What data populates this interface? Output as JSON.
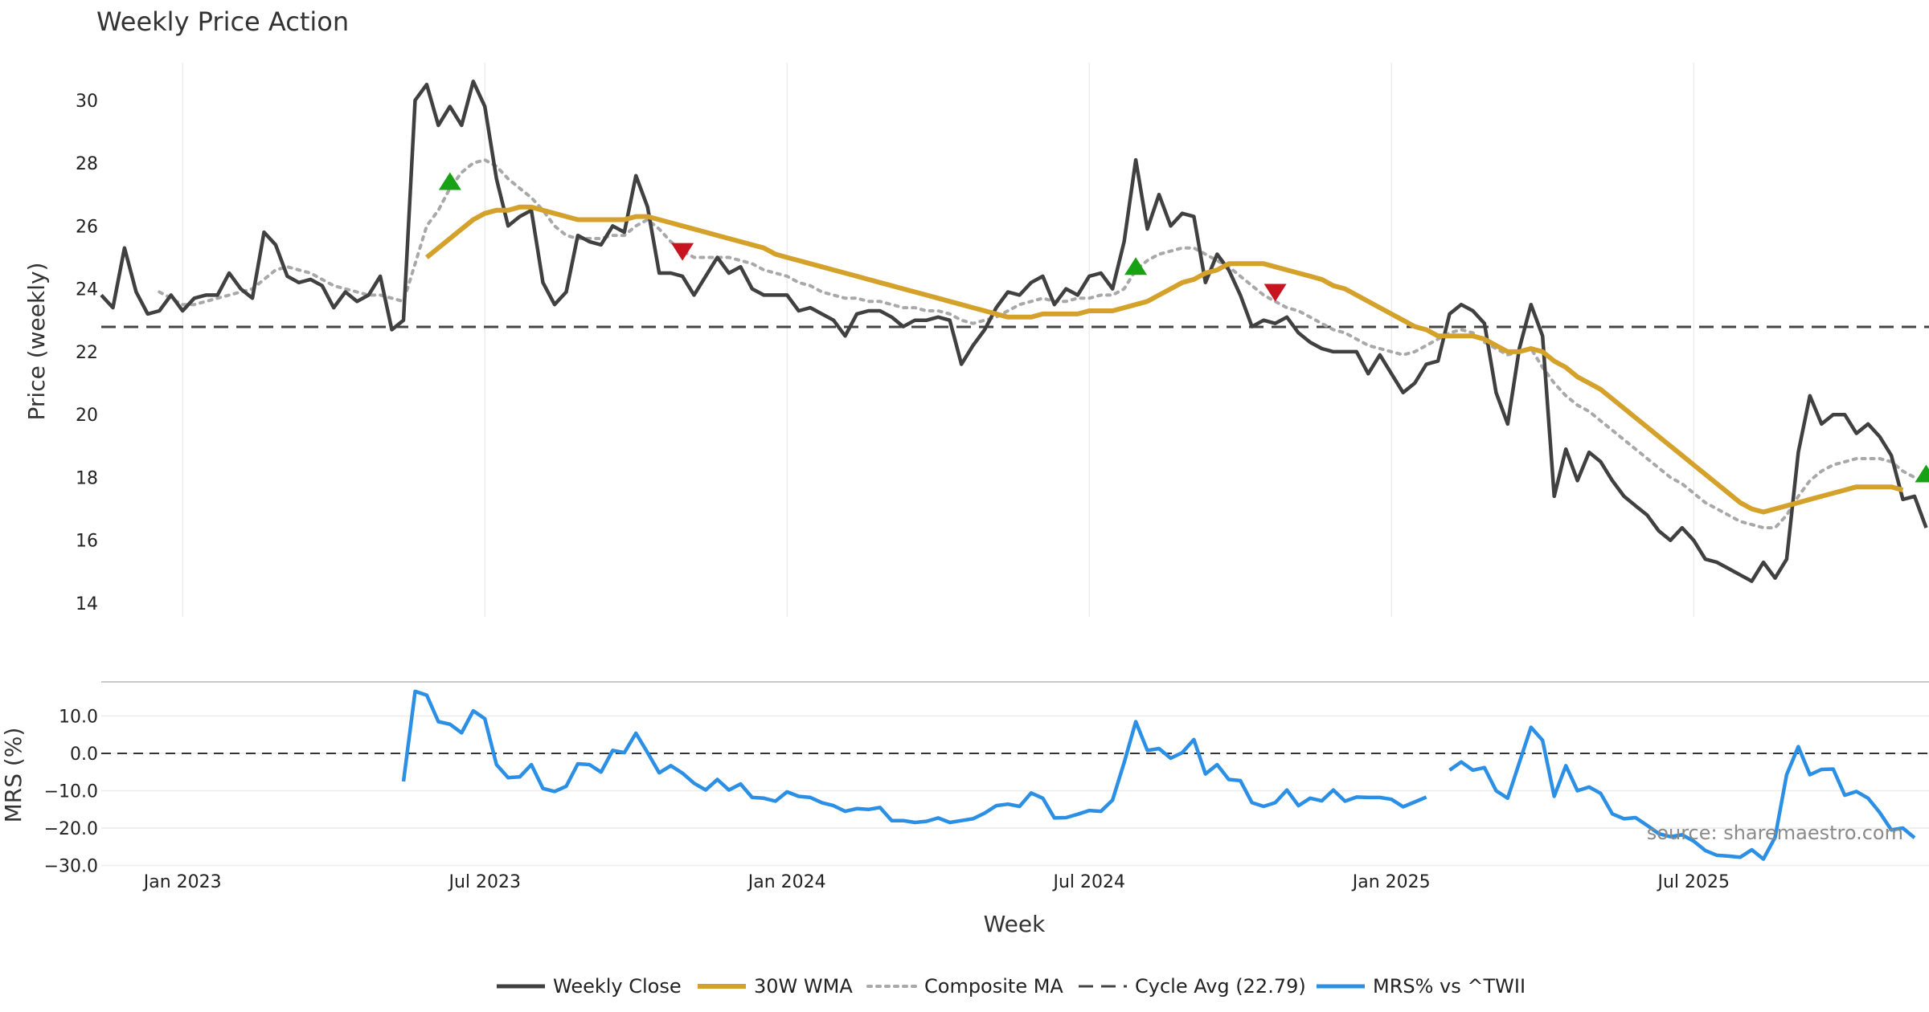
{
  "colors": {
    "close": "#404040",
    "wma": "#d4a12a",
    "composite": "#a8a8a8",
    "cycle": "#444444",
    "mrs": "#2b8fe5",
    "buy": "#18a017",
    "sell": "#c8141e"
  },
  "chart_data": [
    {
      "type": "line",
      "title": "Weekly Price Action",
      "xlabel": "",
      "ylabel": "Price (weekly)",
      "ylim": [
        14,
        31.5
      ],
      "yticks": [
        14,
        16,
        18,
        20,
        22,
        24,
        26,
        28,
        30
      ],
      "x_start": "2022-11-14",
      "x_step_weeks": 1,
      "series": [
        {
          "name": "Weekly Close",
          "values": [
            23.8,
            23.4,
            25.3,
            23.9,
            23.2,
            23.3,
            23.8,
            23.3,
            23.7,
            23.8,
            23.8,
            24.5,
            24.0,
            23.7,
            25.8,
            25.4,
            24.4,
            24.2,
            24.3,
            24.1,
            23.4,
            23.9,
            23.6,
            23.8,
            24.4,
            22.7,
            23.0,
            30.0,
            30.5,
            29.2,
            29.8,
            29.2,
            30.6,
            29.8,
            27.5,
            26.0,
            26.3,
            26.5,
            24.2,
            23.5,
            23.9,
            25.7,
            25.5,
            25.4,
            26.0,
            25.8,
            27.6,
            26.6,
            24.5,
            24.5,
            24.4,
            23.8,
            24.4,
            25.0,
            24.5,
            24.7,
            24.0,
            23.8,
            23.8,
            23.8,
            23.3,
            23.4,
            23.2,
            23.0,
            22.5,
            23.2,
            23.3,
            23.3,
            23.1,
            22.8,
            23.0,
            23.0,
            23.1,
            23.0,
            21.6,
            22.2,
            22.7,
            23.4,
            23.9,
            23.8,
            24.2,
            24.4,
            23.5,
            24.0,
            23.8,
            24.4,
            24.5,
            24.0,
            25.5,
            28.1,
            25.9,
            27.0,
            26.0,
            26.4,
            26.3,
            24.2,
            25.1,
            24.6,
            23.8,
            22.8,
            23.0,
            22.9,
            23.1,
            22.6,
            22.3,
            22.1,
            22.0,
            22.0,
            22.0,
            21.3,
            21.9,
            21.3,
            20.7,
            21.0,
            21.6,
            21.7,
            23.2,
            23.5,
            23.3,
            22.9,
            20.7,
            19.7,
            22.1,
            23.5,
            22.5,
            17.4,
            18.9,
            17.9,
            18.8,
            18.5,
            17.9,
            17.4,
            17.1,
            16.8,
            16.3,
            16.0,
            16.4,
            16.0,
            15.4,
            15.3,
            15.1,
            14.9,
            14.7,
            15.3,
            14.8,
            15.4,
            18.8,
            20.6,
            19.7,
            20.0,
            20.0,
            19.4,
            19.7,
            19.3,
            18.7,
            17.3,
            17.4,
            16.4
          ]
        },
        {
          "name": "30W WMA",
          "values": [
            null,
            null,
            null,
            null,
            null,
            null,
            null,
            null,
            null,
            null,
            null,
            null,
            null,
            null,
            null,
            null,
            null,
            null,
            null,
            null,
            null,
            null,
            null,
            null,
            null,
            null,
            null,
            null,
            25.0,
            25.3,
            25.6,
            25.9,
            26.2,
            26.4,
            26.5,
            26.5,
            26.6,
            26.6,
            26.5,
            26.4,
            26.3,
            26.2,
            26.2,
            26.2,
            26.2,
            26.2,
            26.3,
            26.3,
            26.2,
            26.1,
            26.0,
            25.9,
            25.8,
            25.7,
            25.6,
            25.5,
            25.4,
            25.3,
            25.1,
            25.0,
            24.9,
            24.8,
            24.7,
            24.6,
            24.5,
            24.4,
            24.3,
            24.2,
            24.1,
            24.0,
            23.9,
            23.8,
            23.7,
            23.6,
            23.5,
            23.4,
            23.3,
            23.2,
            23.1,
            23.1,
            23.1,
            23.2,
            23.2,
            23.2,
            23.2,
            23.3,
            23.3,
            23.3,
            23.4,
            23.5,
            23.6,
            23.8,
            24.0,
            24.2,
            24.3,
            24.5,
            24.6,
            24.8,
            24.8,
            24.8,
            24.8,
            24.7,
            24.6,
            24.5,
            24.4,
            24.3,
            24.1,
            24.0,
            23.8,
            23.6,
            23.4,
            23.2,
            23.0,
            22.8,
            22.7,
            22.5,
            22.5,
            22.5,
            22.5,
            22.4,
            22.2,
            22.0,
            22.0,
            22.1,
            22.0,
            21.7,
            21.5,
            21.2,
            21.0,
            20.8,
            20.5,
            20.2,
            19.9,
            19.6,
            19.3,
            19.0,
            18.7,
            18.4,
            18.1,
            17.8,
            17.5,
            17.2,
            17.0,
            16.9,
            17.0,
            17.1,
            17.2,
            17.3,
            17.4,
            17.5,
            17.6,
            17.7,
            17.7,
            17.7,
            17.7,
            17.6
          ]
        },
        {
          "name": "Composite MA",
          "values": [
            null,
            null,
            null,
            null,
            null,
            23.9,
            23.7,
            23.5,
            23.5,
            23.6,
            23.7,
            23.8,
            23.9,
            24.0,
            24.3,
            24.6,
            24.7,
            24.6,
            24.5,
            24.3,
            24.1,
            24.0,
            23.9,
            23.8,
            23.8,
            23.7,
            23.6,
            24.8,
            26.0,
            26.5,
            27.2,
            27.7,
            28.0,
            28.1,
            27.9,
            27.5,
            27.2,
            26.9,
            26.5,
            26.0,
            25.7,
            25.6,
            25.6,
            25.6,
            25.7,
            25.7,
            26.0,
            26.2,
            25.9,
            25.5,
            25.2,
            25.0,
            25.0,
            25.0,
            25.0,
            24.9,
            24.8,
            24.6,
            24.5,
            24.4,
            24.2,
            24.1,
            23.9,
            23.8,
            23.7,
            23.7,
            23.6,
            23.6,
            23.5,
            23.4,
            23.4,
            23.3,
            23.3,
            23.2,
            23.0,
            22.9,
            23.0,
            23.1,
            23.3,
            23.5,
            23.6,
            23.7,
            23.6,
            23.6,
            23.7,
            23.7,
            23.8,
            23.8,
            24.0,
            24.6,
            24.9,
            25.1,
            25.2,
            25.3,
            25.3,
            25.1,
            24.9,
            24.7,
            24.4,
            24.1,
            23.8,
            23.6,
            23.4,
            23.3,
            23.1,
            22.9,
            22.7,
            22.6,
            22.4,
            22.2,
            22.1,
            22.0,
            21.9,
            22.0,
            22.2,
            22.4,
            22.6,
            22.7,
            22.6,
            22.3,
            22.1,
            21.9,
            22.0,
            22.1,
            21.5,
            21.0,
            20.6,
            20.3,
            20.1,
            19.8,
            19.5,
            19.2,
            18.9,
            18.6,
            18.3,
            18.0,
            17.8,
            17.5,
            17.2,
            17.0,
            16.8,
            16.6,
            16.5,
            16.4,
            16.4,
            16.8,
            17.4,
            17.9,
            18.2,
            18.4,
            18.5,
            18.6,
            18.6,
            18.6,
            18.5,
            18.2,
            18.0
          ]
        },
        {
          "name": "Cycle Avg (22.79)",
          "constant": 22.79
        }
      ],
      "buy_markers": [
        {
          "index": 30,
          "value": 27.4
        },
        {
          "index": 89,
          "value": 24.7
        },
        {
          "index": 157,
          "value": 18.1
        }
      ],
      "sell_markers": [
        {
          "index": 50,
          "value": 25.2
        },
        {
          "index": 101,
          "value": 23.9
        }
      ]
    },
    {
      "type": "line",
      "title": "",
      "xlabel": "Week",
      "ylabel": "MRS (%)",
      "ylim": [
        -30,
        20
      ],
      "yticks": [
        -30,
        -20,
        -10,
        0,
        10
      ],
      "ytick_labels": [
        "−30.0",
        "−20.0",
        "−10.0",
        "0.0",
        "10.0"
      ],
      "x_tick_labels": [
        "Jan 2023",
        "Jul 2023",
        "Jan 2024",
        "Jul 2024",
        "Jan 2025",
        "Jul 2025"
      ],
      "x_tick_indices": [
        7,
        33,
        59,
        85,
        111,
        137
      ],
      "series": [
        {
          "name": "MRS% vs ^TWII",
          "values": [
            null,
            null,
            null,
            null,
            null,
            null,
            null,
            null,
            null,
            null,
            null,
            null,
            null,
            null,
            null,
            null,
            null,
            null,
            null,
            null,
            null,
            null,
            null,
            null,
            null,
            null,
            -7.5,
            16.6,
            15.6,
            8.5,
            7.8,
            5.5,
            11.4,
            9.3,
            -3.0,
            -6.5,
            -6.3,
            -3.0,
            -9.4,
            -10.2,
            -8.8,
            -2.8,
            -3.0,
            -5.0,
            0.8,
            0.2,
            5.4,
            0.2,
            -5.2,
            -3.3,
            -5.3,
            -8.0,
            -9.8,
            -7.0,
            -9.8,
            -8.2,
            -11.8,
            -12.0,
            -12.8,
            -10.3,
            -11.5,
            -11.8,
            -13.2,
            -14.0,
            -15.5,
            -14.8,
            -15.0,
            -14.5,
            -18.0,
            -18.0,
            -18.5,
            -18.2,
            -17.3,
            -18.5,
            -18.0,
            -17.5,
            -16.0,
            -14.0,
            -13.6,
            -14.2,
            -10.6,
            -12.0,
            -17.3,
            -17.2,
            -16.3,
            -15.3,
            -15.5,
            -12.5,
            -2.5,
            8.5,
            0.8,
            1.3,
            -1.3,
            0.2,
            3.7,
            -5.5,
            -3.0,
            -7.0,
            -7.3,
            -13.2,
            -14.2,
            -13.2,
            -9.8,
            -14.0,
            -12.0,
            -12.7,
            -9.8,
            -12.8,
            -11.7,
            -11.8,
            -11.8,
            -12.3,
            -14.3,
            -13.0,
            -11.7,
            null,
            -4.5,
            -2.3,
            -4.5,
            -3.8,
            -10.0,
            -12.0,
            -2.5,
            7.0,
            3.5,
            -11.5,
            -3.3,
            -10.0,
            -9.0,
            -10.7,
            -16.2,
            -17.5,
            -17.2,
            -19.3,
            -21.5,
            -22.3,
            -21.8,
            -23.5,
            -26.0,
            -27.3,
            -27.5,
            -27.8,
            -25.8,
            -28.3,
            -22.5,
            -5.7,
            1.8,
            -5.7,
            -4.3,
            -4.2,
            -11.2,
            -10.2,
            -12.0,
            -15.8,
            -20.5,
            -20.0,
            -22.6
          ]
        }
      ],
      "zero_line": 0
    }
  ],
  "source_text": "source: sharemaestro.com",
  "legend": [
    {
      "label": "Weekly Close",
      "key": "close",
      "style": "solid"
    },
    {
      "label": "30W WMA",
      "key": "wma",
      "style": "solid"
    },
    {
      "label": "Composite MA",
      "key": "composite",
      "style": "dotted"
    },
    {
      "label": "Cycle Avg (22.79)",
      "key": "cycle",
      "style": "dashed"
    },
    {
      "label": "MRS% vs ^TWII",
      "key": "mrs",
      "style": "solid"
    }
  ]
}
